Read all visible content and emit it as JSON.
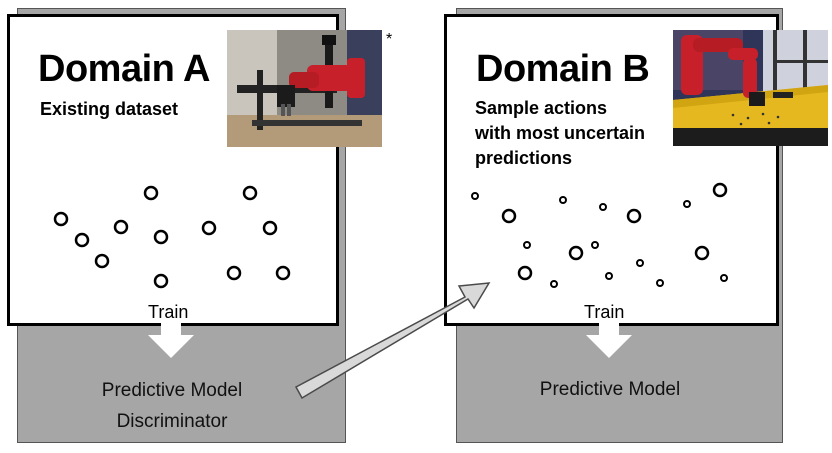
{
  "domain_a": {
    "title": "Domain A",
    "subtitle": "Existing dataset",
    "asterisk": "*",
    "train_label": "Train",
    "model_lines": [
      "Predictive Model",
      "Discriminator"
    ]
  },
  "domain_b": {
    "title": "Domain B",
    "subtitle_lines": [
      "Sample actions",
      "with most uncertain",
      "predictions"
    ],
    "train_label": "Train",
    "model_line": "Predictive Model"
  },
  "icons": [
    "robot-arm-photo-a",
    "robot-arm-photo-b",
    "down-arrow-icon",
    "diagonal-arrow-icon"
  ],
  "colors": {
    "gray_panel": "#a6a6a6",
    "robot_red": "#c8202a",
    "table_yellow": "#e6b820",
    "arrow_fill": "#d9d9d9"
  }
}
